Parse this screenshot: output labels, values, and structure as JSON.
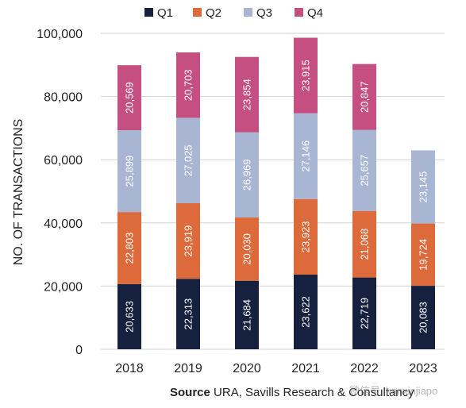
{
  "chart_data": {
    "type": "bar",
    "stacked": true,
    "categories": [
      "2018",
      "2019",
      "2020",
      "2021",
      "2022",
      "2023"
    ],
    "series": [
      {
        "name": "Q1",
        "color": "#15213f",
        "values": [
          20633,
          22313,
          21684,
          23622,
          22719,
          20083
        ],
        "labels": [
          "20,633",
          "22,313",
          "21,684",
          "23,622",
          "22,719",
          "20,083"
        ]
      },
      {
        "name": "Q2",
        "color": "#dd6a3a",
        "values": [
          22803,
          23919,
          20030,
          23923,
          21068,
          19724
        ],
        "labels": [
          "22,803",
          "23,919",
          "20,030",
          "23,923",
          "21,068",
          "19,724"
        ]
      },
      {
        "name": "Q3",
        "color": "#a8b6d3",
        "values": [
          25899,
          27025,
          26969,
          27146,
          25657,
          23145
        ],
        "labels": [
          "25,899",
          "27,025",
          "26,969",
          "27,146",
          "25,657",
          "23,145"
        ]
      },
      {
        "name": "Q4",
        "color": "#c44f80",
        "values": [
          20569,
          20703,
          23854,
          23915,
          20847,
          null
        ],
        "labels": [
          "20,569",
          "20,703",
          "23,854",
          "23,915",
          "20,847",
          ""
        ]
      }
    ],
    "ylabel": "NO. OF TRANSACTIONS",
    "ylim": [
      0,
      100000
    ],
    "yticks": [
      0,
      20000,
      40000,
      60000,
      80000,
      100000
    ],
    "ytick_labels": [
      "0",
      "20,000",
      "40,000",
      "60,000",
      "80,000",
      "100,000"
    ],
    "legend_position": "top",
    "grid": true
  },
  "source": {
    "label": "Source",
    "text": "URA, Savills Research & Consultancy"
  },
  "watermark": "微信号: kanxinjiapo"
}
